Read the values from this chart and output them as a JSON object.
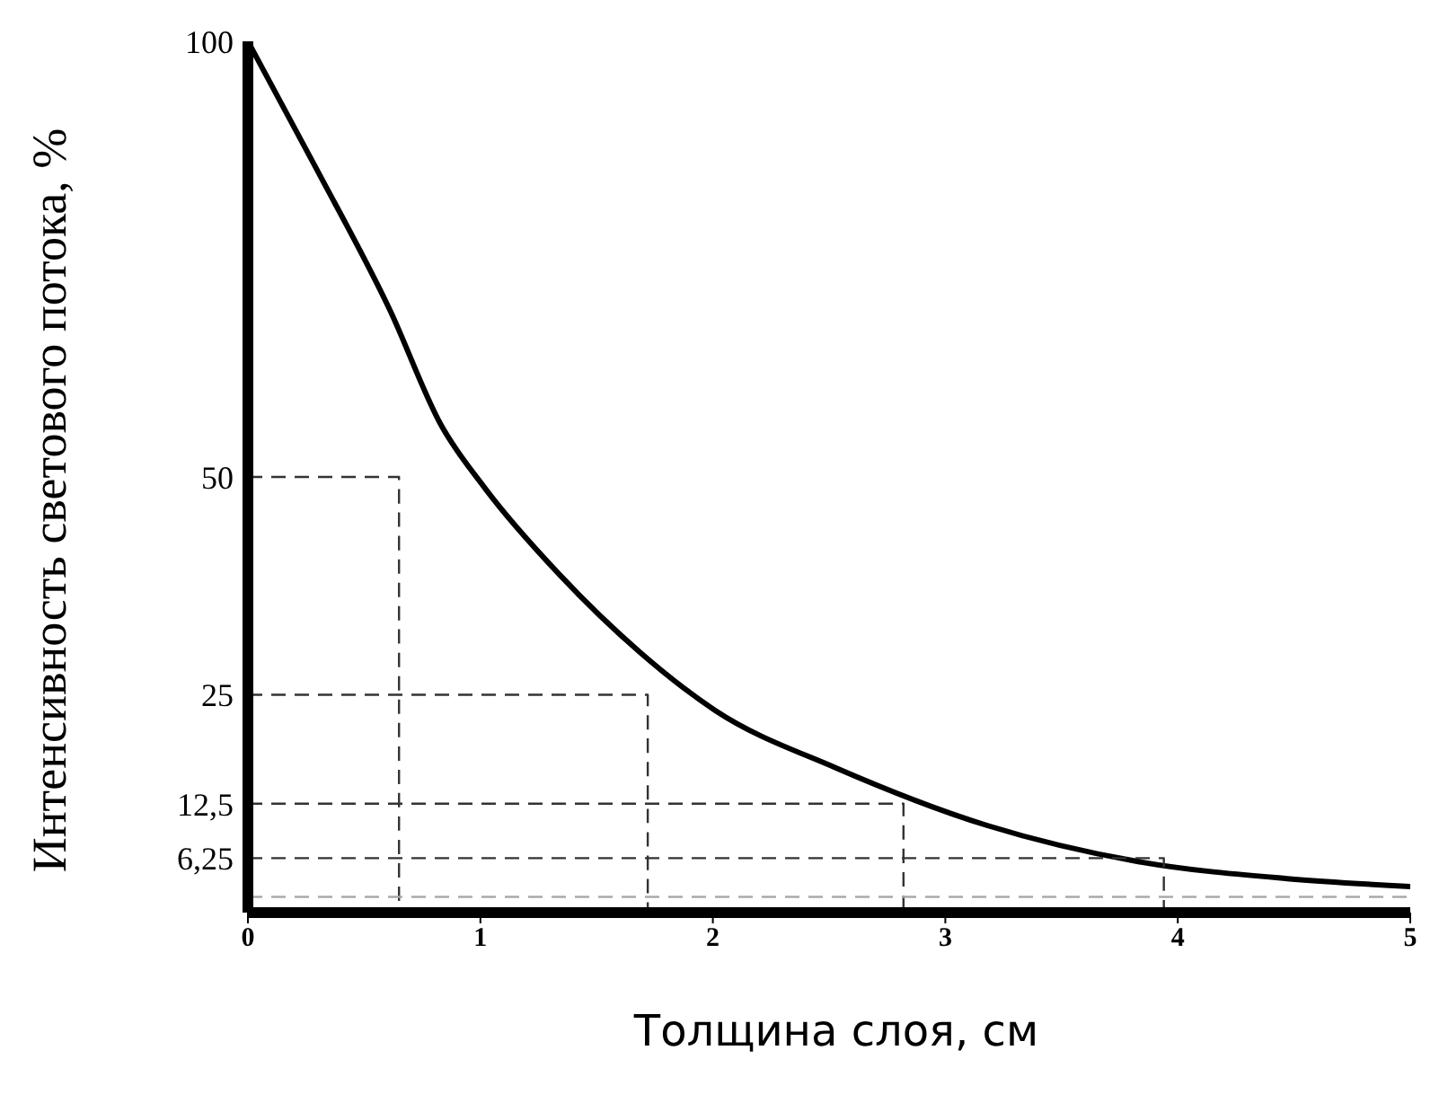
{
  "chart_data": {
    "type": "line",
    "xlabel": "Толщина слоя, см",
    "ylabel": "Интенсивность светового потока, %",
    "series": [
      {
        "color": "#000000",
        "line_style": "solid",
        "x": [
          0,
          0.29,
          0.61,
          0.83,
          1.02,
          1.34,
          1.69,
          2.01,
          2.53,
          3.18,
          3.82,
          4.47,
          5
        ],
        "values": [
          100,
          85.6,
          69.2,
          56,
          48.7,
          38.8,
          29.8,
          23.2,
          16.6,
          10,
          5.9,
          3.9,
          3
        ]
      },
      {
        "color": "#333333",
        "line_style": "dashed",
        "x": [
          0,
          0.65,
          0.65
        ],
        "values": [
          50,
          50,
          0
        ]
      },
      {
        "color": "#333333",
        "line_style": "dashed",
        "x": [
          0,
          1.72,
          1.72
        ],
        "values": [
          25,
          25,
          0
        ]
      },
      {
        "color": "#333333",
        "line_style": "dashed",
        "x": [
          0,
          2.82,
          2.82
        ],
        "values": [
          12.5,
          12.5,
          0
        ]
      },
      {
        "color": "#333333",
        "line_style": "dashed",
        "x": [
          0,
          3.94,
          3.94
        ],
        "values": [
          6.25,
          6.25,
          0
        ]
      },
      {
        "color": "#aaaaaa",
        "line_style": "dashed",
        "x": [
          0,
          5
        ],
        "values": [
          1.8,
          1.8
        ]
      }
    ],
    "xlim": [
      0,
      5
    ],
    "xticks": [
      0,
      1,
      2,
      3,
      4,
      5
    ],
    "ylim": [
      0,
      100
    ],
    "yticks": [
      100,
      50,
      25,
      {
        "value": 12.5,
        "label": "12,5"
      },
      {
        "value": 6.25,
        "label": "6,25"
      }
    ],
    "grid": false,
    "legend": false,
    "marker": "none"
  }
}
